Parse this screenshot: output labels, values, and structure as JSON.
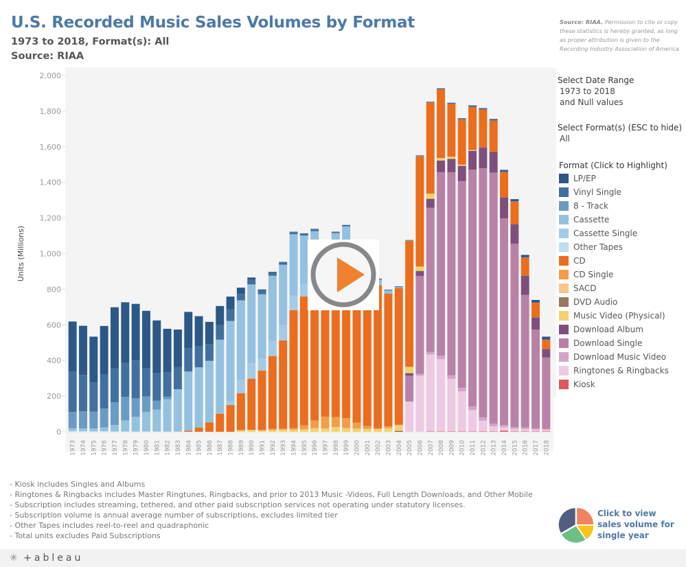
{
  "header": {
    "title": "U.S. Recorded Music Sales Volumes by Format",
    "subtitle": "1973 to 2018, Format(s): All",
    "source": "Source: RIAA"
  },
  "permission": {
    "bold": "Source: RIAA.",
    "text": " Permission to cite or copy these statistics is hereby granted, as long as proper attribution is given to the Recording Industry Association of America"
  },
  "filters": {
    "date_range_label": "Select Date Range",
    "date_range_value": "1973 to 2018",
    "date_range_null": "and Null values",
    "format_label": "Select Format(s) (ESC to hide)",
    "format_value": "All"
  },
  "legend": {
    "title": "Format (Click to Highlight)",
    "items": [
      {
        "label": "LP/EP",
        "color": "#2b5886"
      },
      {
        "label": "Vinyl Single",
        "color": "#41709f"
      },
      {
        "label": "8 - Track",
        "color": "#6a9bc3"
      },
      {
        "label": "Cassette",
        "color": "#94c1e0"
      },
      {
        "label": "Cassette Single",
        "color": "#a3cbe6"
      },
      {
        "label": "Other Tapes",
        "color": "#bcdff1"
      },
      {
        "label": "CD",
        "color": "#eb6d1e"
      },
      {
        "label": "CD Single",
        "color": "#f59d45"
      },
      {
        "label": "SACD",
        "color": "#fbc38a"
      },
      {
        "label": "DVD Audio",
        "color": "#9d7660"
      },
      {
        "label": "Music Video (Physical)",
        "color": "#f4d26c"
      },
      {
        "label": "Download Album",
        "color": "#7e4f7c"
      },
      {
        "label": "Download Single",
        "color": "#b882a7"
      },
      {
        "label": "Download Music Video",
        "color": "#d5a3c8"
      },
      {
        "label": "Ringtones & Ringbacks",
        "color": "#eec9e3"
      },
      {
        "label": "Kiosk",
        "color": "#e15759"
      }
    ]
  },
  "notes": [
    "- Kiosk includes Singles and Albums",
    "- Ringtones & Ringbacks includes Master Ringtunes, Ringbacks, and prior to 2013 Music -Videos, Full Length Downloads, and Other Mobile",
    "- Subscription includes streaming, tethered, and other paid subscription services not operating under statutory licenses.",
    "- Subscription volume is annual average number of subscriptions, excludes limited tier",
    "- Other Tapes includes reel-to-reel and quadraphonic",
    "- Total units excludes Paid Subscriptions"
  ],
  "pie_link": {
    "text": "Click to view sales volume for single year",
    "colors": [
      "#f08460",
      "#f5c518",
      "#6cc086",
      "#525d82"
    ]
  },
  "footer": {
    "logo": "+ableau"
  },
  "chart_data": {
    "type": "bar",
    "stacked": true,
    "title": "U.S. Recorded Music Sales Volumes by Format",
    "xlabel": "",
    "ylabel": "Units (Millions)",
    "ylim": [
      0,
      2000
    ],
    "yticks": [
      0,
      200,
      400,
      600,
      800,
      1000,
      1200,
      1400,
      1600,
      1800,
      2000
    ],
    "grid": false,
    "legend_position": "right",
    "categories": [
      "1973",
      "1974",
      "1975",
      "1976",
      "1977",
      "1978",
      "1979",
      "1980",
      "1981",
      "1982",
      "1983",
      "1984",
      "1985",
      "1986",
      "1987",
      "1988",
      "1989",
      "1990",
      "1991",
      "1992",
      "1993",
      "1994",
      "1995",
      "1996",
      "1997",
      "1998",
      "1999",
      "2000",
      "2001",
      "2002",
      "2003",
      "2004",
      "2005",
      "2006",
      "2007",
      "2008",
      "2009",
      "2010",
      "2011",
      "2012",
      "2013",
      "2014",
      "2015",
      "2016",
      "2017",
      "2018"
    ],
    "series": [
      {
        "name": "Kiosk",
        "values": [
          0,
          0,
          0,
          0,
          0,
          0,
          0,
          0,
          0,
          0,
          0,
          0,
          0,
          0,
          0,
          0,
          0,
          0,
          0,
          0,
          0,
          0,
          0,
          0,
          0,
          0,
          0,
          0,
          0,
          0,
          0,
          0,
          0,
          0,
          2,
          2,
          2,
          2,
          2,
          2,
          2,
          6,
          2,
          2,
          2,
          2
        ]
      },
      {
        "name": "Ringtones & Ringbacks",
        "values": [
          0,
          0,
          0,
          0,
          0,
          0,
          0,
          0,
          0,
          0,
          0,
          0,
          0,
          0,
          0,
          0,
          0,
          0,
          0,
          0,
          0,
          0,
          0,
          0,
          0,
          0,
          0,
          0,
          0,
          0,
          0,
          0,
          170,
          315,
          432,
          405,
          295,
          225,
          120,
          60,
          28,
          20,
          14,
          13,
          10,
          9
        ]
      },
      {
        "name": "Download Music Video",
        "values": [
          0,
          0,
          0,
          0,
          0,
          0,
          0,
          0,
          0,
          0,
          0,
          0,
          0,
          0,
          0,
          0,
          0,
          0,
          0,
          0,
          0,
          0,
          0,
          0,
          0,
          0,
          0,
          0,
          0,
          0,
          0,
          0,
          0,
          10,
          14,
          20,
          20,
          20,
          20,
          18,
          15,
          12,
          10,
          9,
          7,
          6
        ]
      },
      {
        "name": "Download Single",
        "values": [
          0,
          0,
          0,
          0,
          0,
          0,
          0,
          0,
          0,
          0,
          0,
          0,
          0,
          0,
          0,
          0,
          0,
          0,
          0,
          0,
          0,
          0,
          0,
          0,
          0,
          0,
          0,
          0,
          0,
          0,
          0,
          0,
          145,
          550,
          810,
          1030,
          1140,
          1160,
          1330,
          1400,
          1410,
          1160,
          1030,
          745,
          555,
          400
        ]
      },
      {
        "name": "Download Album",
        "values": [
          0,
          0,
          0,
          0,
          0,
          0,
          0,
          0,
          0,
          0,
          0,
          0,
          0,
          0,
          0,
          0,
          0,
          0,
          0,
          0,
          0,
          0,
          0,
          0,
          0,
          0,
          0,
          0,
          0,
          0,
          0,
          5,
          14,
          28,
          50,
          66,
          75,
          86,
          105,
          117,
          118,
          118,
          110,
          108,
          68,
          48
        ]
      },
      {
        "name": "Music Video (Physical)",
        "values": [
          0,
          0,
          0,
          0,
          0,
          0,
          0,
          0,
          0,
          0,
          0,
          0,
          0,
          0,
          0,
          0,
          8,
          10,
          7,
          10,
          11,
          12,
          14,
          20,
          19,
          27,
          20,
          18,
          16,
          14,
          20,
          30,
          33,
          23,
          27,
          13,
          11,
          6,
          4,
          0,
          0,
          0,
          0,
          0,
          0,
          0
        ]
      },
      {
        "name": "DVD Audio",
        "values": [
          0,
          0,
          0,
          0,
          0,
          0,
          0,
          0,
          0,
          0,
          0,
          0,
          0,
          0,
          0,
          0,
          0,
          0,
          0,
          0,
          0,
          0,
          0,
          0,
          0,
          0,
          0,
          0,
          0,
          0,
          1,
          1,
          1,
          0,
          0,
          0,
          0,
          0,
          0,
          0,
          0,
          0,
          0,
          0,
          0,
          0
        ]
      },
      {
        "name": "SACD",
        "values": [
          0,
          0,
          0,
          0,
          0,
          0,
          0,
          0,
          0,
          0,
          0,
          0,
          0,
          0,
          0,
          0,
          0,
          0,
          0,
          0,
          0,
          0,
          0,
          0,
          0,
          0,
          0,
          0,
          0,
          1,
          1,
          1,
          0,
          0,
          0,
          0,
          0,
          0,
          0,
          0,
          0,
          0,
          0,
          0,
          0,
          0
        ]
      },
      {
        "name": "CD Single",
        "values": [
          0,
          0,
          0,
          0,
          0,
          0,
          0,
          0,
          0,
          0,
          0,
          0,
          0,
          0,
          0,
          0,
          1,
          1,
          3,
          7,
          7,
          9,
          22,
          43,
          66,
          56,
          56,
          34,
          17,
          5,
          8,
          3,
          3,
          2,
          3,
          1,
          1,
          1,
          1,
          1,
          1,
          1,
          1,
          1,
          1,
          1
        ]
      },
      {
        "name": "CD",
        "values": [
          0,
          0,
          0,
          0,
          0,
          0,
          0,
          0,
          0,
          0,
          1,
          6,
          23,
          53,
          102,
          150,
          207,
          287,
          333,
          408,
          495,
          662,
          723,
          779,
          753,
          847,
          939,
          943,
          882,
          803,
          746,
          767,
          705,
          619,
          511,
          385,
          297,
          253,
          241,
          211,
          173,
          141,
          125,
          100,
          81,
          50
        ]
      },
      {
        "name": "Other Tapes",
        "values": [
          5,
          4,
          3,
          4,
          2,
          2,
          2,
          2,
          1,
          1,
          1,
          0,
          0,
          0,
          0,
          0,
          0,
          0,
          0,
          0,
          0,
          0,
          0,
          0,
          0,
          0,
          0,
          0,
          0,
          0,
          0,
          0,
          0,
          0,
          0,
          0,
          0,
          0,
          0,
          0,
          0,
          0,
          0,
          0,
          0,
          0
        ]
      },
      {
        "name": "Cassette Single",
        "values": [
          0,
          0,
          0,
          0,
          0,
          0,
          0,
          0,
          0,
          0,
          0,
          0,
          0,
          0,
          5,
          22,
          76,
          87,
          69,
          85,
          85,
          81,
          70,
          59,
          42,
          26,
          14,
          1,
          0,
          0,
          0,
          0,
          0,
          0,
          0,
          0,
          0,
          0,
          0,
          0,
          0,
          0,
          0,
          0,
          0,
          0
        ]
      },
      {
        "name": "Cassette",
        "values": [
          15,
          15,
          16,
          21,
          36,
          61,
          82,
          110,
          124,
          182,
          237,
          332,
          339,
          345,
          410,
          450,
          446,
          442,
          360,
          366,
          340,
          345,
          273,
          225,
          173,
          159,
          124,
          76,
          45,
          31,
          17,
          5,
          2,
          1,
          0,
          0,
          0,
          0,
          0,
          0,
          0,
          0,
          0,
          0,
          0,
          0
        ]
      },
      {
        "name": "8 - Track",
        "values": [
          91,
          96,
          94,
          106,
          127,
          133,
          104,
          86,
          49,
          14,
          0,
          0,
          0,
          0,
          0,
          0,
          0,
          0,
          0,
          0,
          0,
          0,
          0,
          0,
          0,
          0,
          0,
          0,
          0,
          0,
          0,
          0,
          0,
          0,
          0,
          0,
          0,
          0,
          0,
          0,
          0,
          0,
          0,
          0,
          0,
          0
        ]
      },
      {
        "name": "Vinyl Single",
        "values": [
          228,
          204,
          164,
          190,
          190,
          190,
          212,
          158,
          155,
          137,
          125,
          131,
          120,
          94,
          82,
          65,
          36,
          27,
          22,
          20,
          15,
          12,
          10,
          10,
          8,
          5,
          5,
          5,
          5,
          4,
          4,
          4,
          3,
          3,
          3,
          3,
          3,
          3,
          3,
          3,
          3,
          3,
          2,
          2,
          2,
          2
        ]
      },
      {
        "name": "LP/EP",
        "values": [
          280,
          276,
          257,
          273,
          344,
          341,
          318,
          323,
          296,
          244,
          210,
          204,
          167,
          125,
          107,
          72,
          35,
          12,
          5,
          2,
          1,
          2,
          2,
          3,
          3,
          3,
          3,
          2,
          2,
          2,
          1,
          1,
          1,
          1,
          1,
          3,
          3,
          4,
          6,
          5,
          6,
          9,
          12,
          13,
          14,
          16
        ]
      }
    ]
  }
}
